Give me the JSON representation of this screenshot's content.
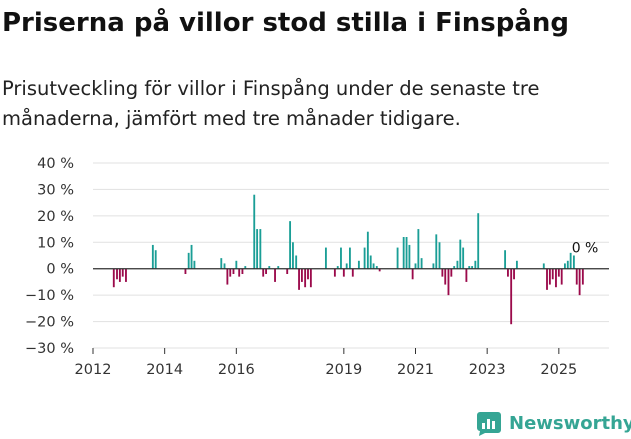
{
  "title": "Priserna på villor stod stilla i Finspång",
  "subtitle": "Prisutveckling för villor i Finspång under de senaste tre månaderna, jämfört med tre månader tidigare.",
  "brand": {
    "name": "Newsworthy",
    "icon": "newsworthy-logo-icon"
  },
  "colors": {
    "positive": "#1a9e96",
    "negative": "#9b0a4b",
    "grid": "#e1e1e1",
    "axis": "#333333",
    "brand": "#35a594"
  },
  "chart_data": {
    "type": "bar",
    "title": "Priserna på villor stod stilla i Finspång",
    "xlabel": "",
    "ylabel": "",
    "ylim": [
      -30,
      40
    ],
    "yticks": [
      40,
      30,
      20,
      10,
      0,
      -10,
      -20,
      -30
    ],
    "ytick_labels": [
      "40 %",
      "30 %",
      "20 %",
      "10 %",
      "0 %",
      "−10 %",
      "−20 %",
      "−30 %"
    ],
    "xlim": [
      2012,
      2026.4
    ],
    "xticks": [
      2012,
      2014,
      2016,
      2019,
      2021,
      2023,
      2025
    ],
    "xtick_labels": [
      "2012",
      "2014",
      "2016",
      "2019",
      "2021",
      "2023",
      "2025"
    ],
    "annotation": {
      "x": 2025.75,
      "y": 0,
      "label": "0 %"
    },
    "x": [
      2012.58,
      2012.67,
      2012.75,
      2012.83,
      2012.92,
      2013.67,
      2013.75,
      2014.58,
      2014.67,
      2014.75,
      2014.83,
      2015.58,
      2015.67,
      2015.75,
      2015.83,
      2015.92,
      2016.0,
      2016.08,
      2016.17,
      2016.25,
      2016.5,
      2016.58,
      2016.67,
      2016.75,
      2016.83,
      2016.92,
      2017.08,
      2017.17,
      2017.42,
      2017.5,
      2017.58,
      2017.67,
      2017.75,
      2017.83,
      2017.92,
      2018.0,
      2018.08,
      2018.5,
      2018.75,
      2018.83,
      2018.92,
      2019.0,
      2019.08,
      2019.17,
      2019.25,
      2019.42,
      2019.58,
      2019.67,
      2019.75,
      2019.83,
      2019.92,
      2020.0,
      2020.5,
      2020.67,
      2020.75,
      2020.83,
      2020.92,
      2021.0,
      2021.08,
      2021.17,
      2021.5,
      2021.58,
      2021.67,
      2021.75,
      2021.83,
      2021.92,
      2022.0,
      2022.08,
      2022.17,
      2022.25,
      2022.33,
      2022.42,
      2022.5,
      2022.58,
      2022.67,
      2022.75,
      2023.5,
      2023.58,
      2023.67,
      2023.75,
      2023.83,
      2024.58,
      2024.67,
      2024.75,
      2024.83,
      2024.92,
      2025.0,
      2025.08,
      2025.17,
      2025.25,
      2025.33,
      2025.42,
      2025.5,
      2025.58,
      2025.67,
      2025.75
    ],
    "values": [
      -7,
      -4,
      -5,
      -3,
      -5,
      9,
      7,
      -2,
      6,
      9,
      3,
      4,
      2,
      -6,
      -3,
      -2,
      3,
      -3,
      -2,
      1,
      28,
      15,
      15,
      -3,
      -2,
      1,
      -5,
      1,
      -2,
      18,
      10,
      5,
      -8,
      -5,
      -7,
      -4,
      -7,
      8,
      -3,
      1,
      8,
      -3,
      2,
      8,
      -3,
      3,
      8,
      14,
      5,
      2,
      1,
      -1,
      8,
      12,
      12,
      9,
      -4,
      2,
      15,
      4,
      2,
      13,
      10,
      -3,
      -6,
      -10,
      -3,
      1,
      3,
      11,
      8,
      -5,
      1,
      1,
      3,
      21,
      7,
      -3,
      -21,
      -4,
      3,
      2,
      -8,
      -6,
      -4,
      -7,
      -3,
      -6,
      2,
      3,
      6,
      5,
      -6,
      -10,
      -6,
      0
    ]
  }
}
